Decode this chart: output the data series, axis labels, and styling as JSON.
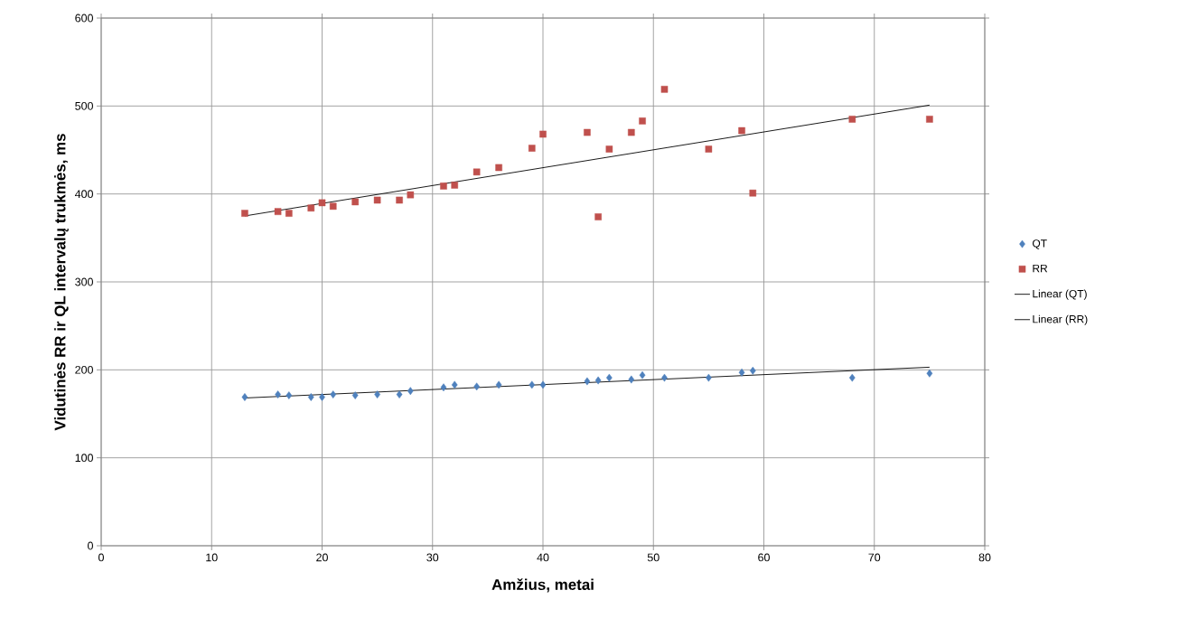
{
  "chart_data": {
    "type": "scatter",
    "xlabel": "Amžius, metai",
    "ylabel": "Vidutinės RR ir QL intervalų trukmės, ms",
    "xlim": [
      0,
      80
    ],
    "xticks": [
      0,
      10,
      20,
      30,
      40,
      50,
      60,
      70,
      80
    ],
    "ylim": [
      0,
      600
    ],
    "yticks": [
      0,
      100,
      200,
      300,
      400,
      500,
      600
    ],
    "grid": true,
    "legend": "right",
    "series": [
      {
        "name": "QT",
        "color": "#4f81bd",
        "marker": "diamond",
        "x": [
          13,
          16,
          17,
          19,
          20,
          21,
          23,
          25,
          27,
          28,
          31,
          32,
          34,
          36,
          39,
          40,
          44,
          45,
          46,
          48,
          49,
          51,
          55,
          58,
          59,
          68,
          75
        ],
        "values": [
          169,
          172,
          171,
          169,
          169,
          172,
          171,
          172,
          172,
          176,
          180,
          183,
          181,
          183,
          183,
          183,
          187,
          188,
          191,
          189,
          194,
          191,
          191,
          197,
          199,
          191,
          196
        ]
      },
      {
        "name": "RR",
        "color": "#c0504d",
        "marker": "square",
        "x": [
          13,
          16,
          17,
          19,
          20,
          21,
          23,
          25,
          27,
          28,
          31,
          32,
          34,
          36,
          39,
          40,
          44,
          45,
          46,
          48,
          49,
          51,
          55,
          58,
          59,
          68,
          75
        ],
        "values": [
          378,
          380,
          378,
          384,
          390,
          386,
          391,
          393,
          393,
          399,
          409,
          410,
          425,
          430,
          452,
          468,
          470,
          374,
          451,
          470,
          483,
          519,
          451,
          472,
          401,
          485,
          485
        ]
      },
      {
        "name": "Linear (QT)",
        "type": "line",
        "color": "#000000",
        "marker": "none",
        "x": [
          13,
          75
        ],
        "values": [
          168,
          203
        ]
      },
      {
        "name": "Linear (RR)",
        "type": "line",
        "color": "#000000",
        "marker": "none",
        "x": [
          13,
          75
        ],
        "values": [
          375,
          501
        ]
      }
    ]
  }
}
